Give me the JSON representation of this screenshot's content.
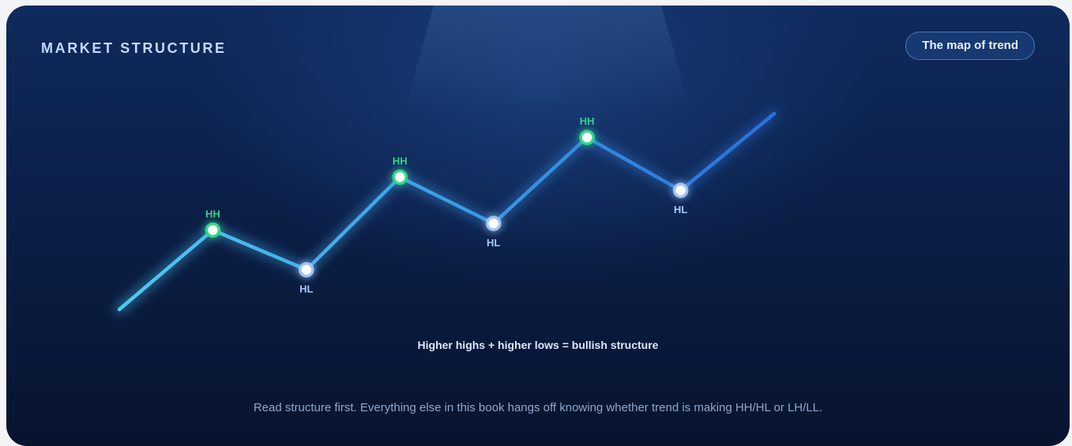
{
  "header": {
    "title": "MARKET STRUCTURE",
    "badge_label": "The map of trend"
  },
  "diagram": {
    "points": [
      {
        "label": "",
        "type": "start",
        "x": 0,
        "y": 0
      },
      {
        "label": "HH",
        "type": "high",
        "x": 1,
        "y": 3
      },
      {
        "label": "HL",
        "type": "low",
        "x": 2,
        "y": 1.5
      },
      {
        "label": "HH",
        "type": "high",
        "x": 3,
        "y": 5
      },
      {
        "label": "HL",
        "type": "low",
        "x": 4,
        "y": 3.25
      },
      {
        "label": "HH",
        "type": "high",
        "x": 5,
        "y": 6.5
      },
      {
        "label": "HL",
        "type": "low",
        "x": 6,
        "y": 4.5
      },
      {
        "label": "",
        "type": "end",
        "x": 7,
        "y": 7.4
      }
    ],
    "colors": {
      "line_start": "#4fc9f2",
      "line_end": "#2a6fd8",
      "high_ring": "#34d58a",
      "low_ring": "#9ec4f5",
      "node_fill": "#ffffff"
    },
    "caption": "Higher highs + higher lows = bullish structure"
  },
  "footer": {
    "note": "Read structure first. Everything else in this book hangs off knowing whether trend is making HH/HL or LH/LL."
  }
}
